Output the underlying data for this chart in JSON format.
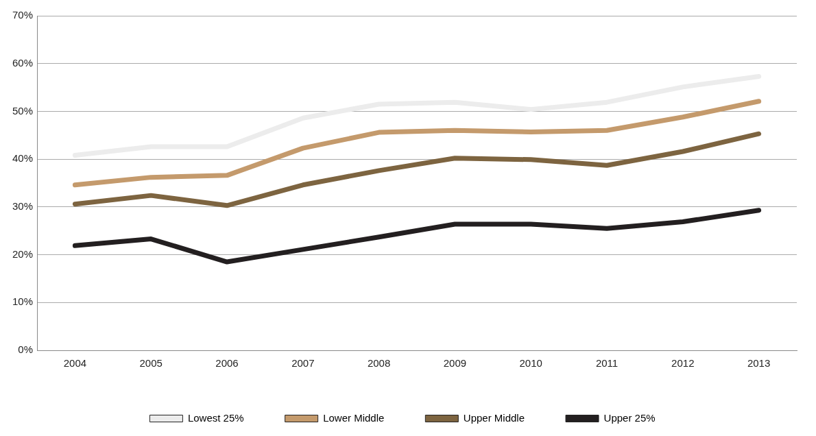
{
  "chart_data": {
    "type": "line",
    "categories": [
      "2004",
      "2005",
      "2006",
      "2007",
      "2008",
      "2009",
      "2010",
      "2011",
      "2012",
      "2013"
    ],
    "series": [
      {
        "name": "Lowest 25%",
        "color": "#ececec",
        "values": [
          40.8,
          42.6,
          42.6,
          48.6,
          51.5,
          51.9,
          50.4,
          51.9,
          55.1,
          57.3
        ]
      },
      {
        "name": "Lower Middle",
        "color": "#c49a6c",
        "values": [
          34.6,
          36.2,
          36.6,
          42.3,
          45.6,
          46.0,
          45.7,
          46.0,
          48.8,
          52.1
        ]
      },
      {
        "name": "Upper Middle",
        "color": "#7d6440",
        "values": [
          30.6,
          32.4,
          30.3,
          34.6,
          37.6,
          40.2,
          39.9,
          38.7,
          41.6,
          45.3
        ]
      },
      {
        "name": "Upper 25%",
        "color": "#231f20",
        "values": [
          21.9,
          23.3,
          18.5,
          21.1,
          23.7,
          26.4,
          26.4,
          25.5,
          26.9,
          29.3
        ]
      }
    ],
    "ylim": [
      0,
      70
    ],
    "yticks": [
      {
        "value": 0,
        "label": "0%"
      },
      {
        "value": 10,
        "label": "10%"
      },
      {
        "value": 20,
        "label": "20%"
      },
      {
        "value": 30,
        "label": "30%"
      },
      {
        "value": 40,
        "label": "40%"
      },
      {
        "value": 50,
        "label": "50%"
      },
      {
        "value": 60,
        "label": "60%"
      },
      {
        "value": 70,
        "label": "70%"
      }
    ],
    "grid": "y",
    "legend": "bottom",
    "marker": "none",
    "line_style": "solid"
  }
}
